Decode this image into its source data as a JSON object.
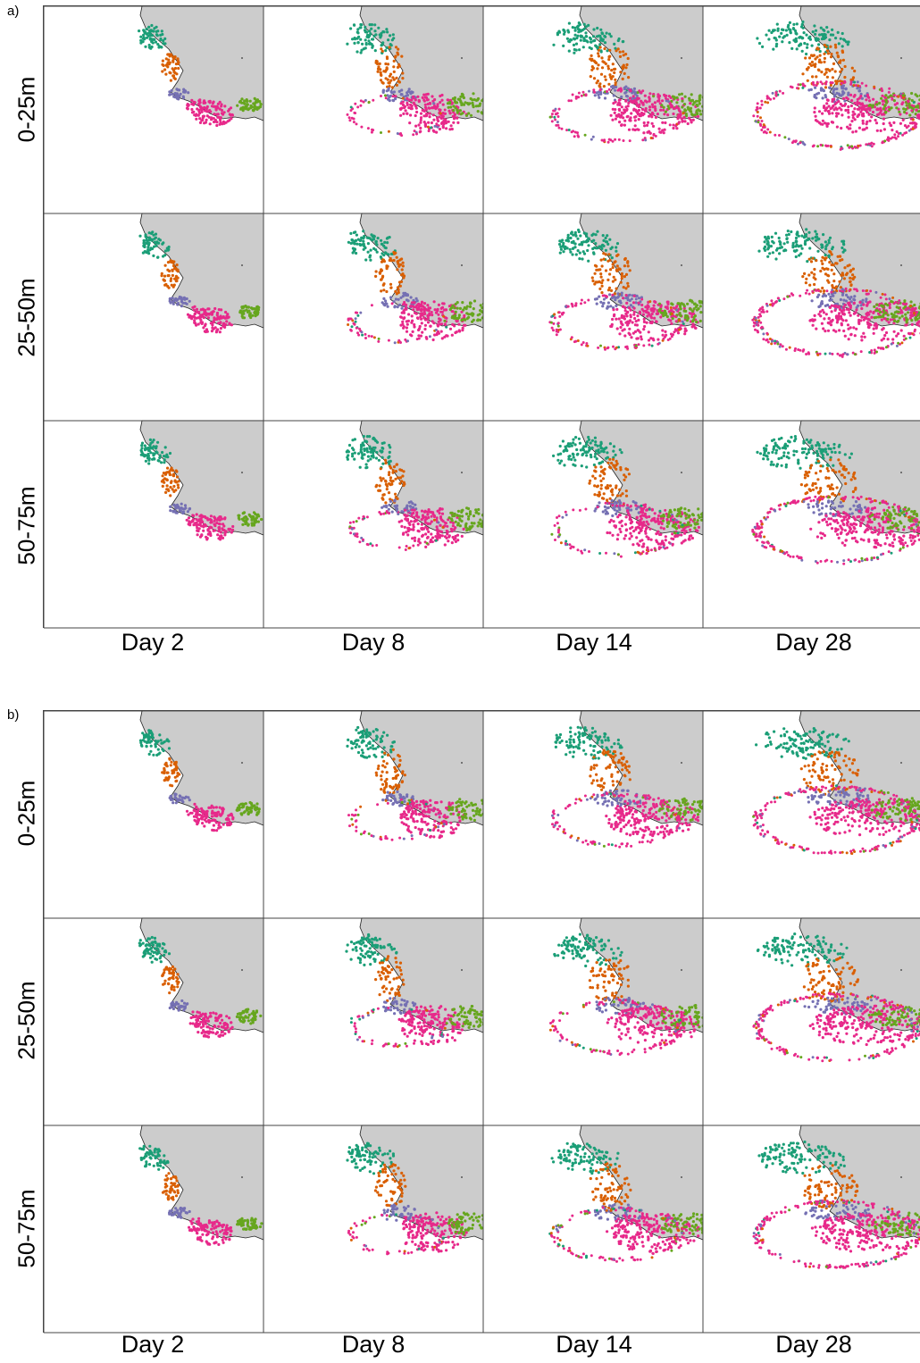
{
  "panels": [
    {
      "letter": "a)",
      "rows": [
        "0-25m",
        "25-50m",
        "50-75m"
      ],
      "columns": [
        "Day 2",
        "Day 8",
        "Day 14",
        "Day 28"
      ]
    },
    {
      "letter": "b)",
      "rows": [
        "0-25m",
        "25-50m",
        "50-75m"
      ],
      "columns": [
        "Day 2",
        "Day 8",
        "Day 14",
        "Day 28"
      ]
    }
  ],
  "colors": {
    "land": "#cccccc",
    "coast": "#222222",
    "region_north": "#1b9e77",
    "region_midwest": "#d95f02",
    "region_southwest": "#7570b3",
    "region_south": "#e7298a",
    "region_southeast": "#66a61e"
  }
}
